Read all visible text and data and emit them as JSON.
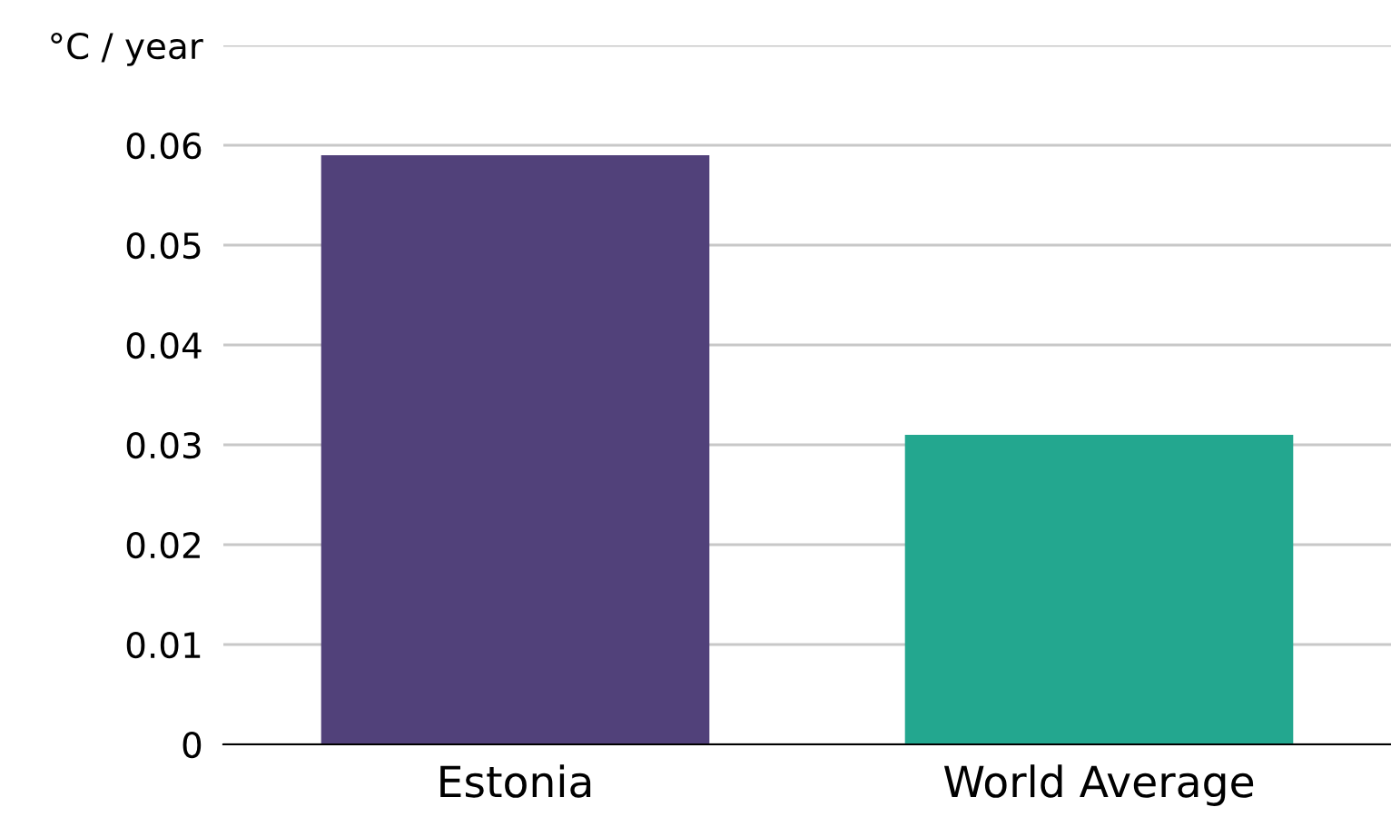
{
  "chart_data": {
    "type": "bar",
    "categories": [
      "Estonia",
      "World Average"
    ],
    "values": [
      0.059,
      0.031
    ],
    "colors": [
      "#51417a",
      "#23a78f"
    ],
    "ylim": [
      0,
      0.07
    ],
    "yticks": [
      0,
      0.01,
      0.02,
      0.03,
      0.04,
      0.05,
      0.06,
      {
        "value": 0.07,
        "label": "°C / year"
      }
    ],
    "grid": "y"
  }
}
